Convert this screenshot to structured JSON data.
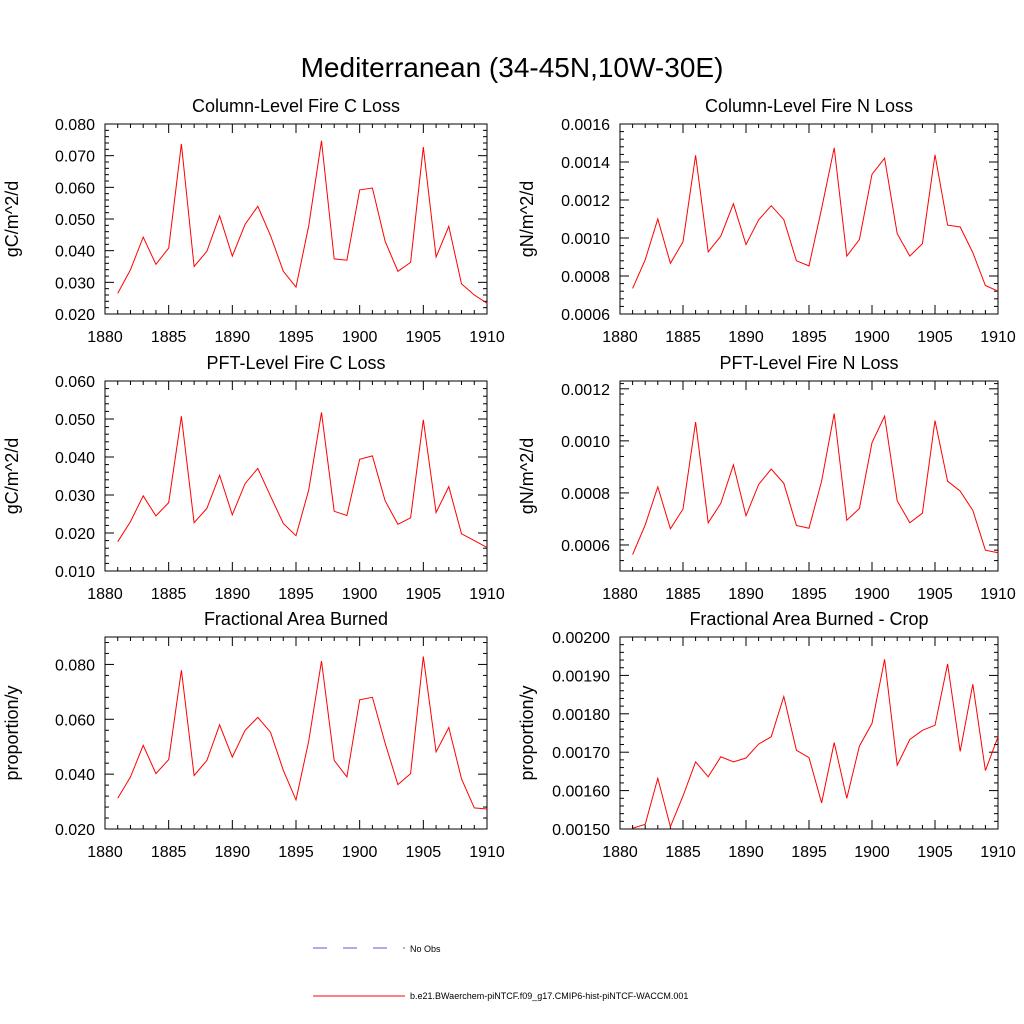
{
  "figure": {
    "title": "Mediterranean (34-45N,10W-30E)",
    "series_color": "#ff0000",
    "obs_color": "#5a5adc",
    "legend": {
      "obs_label": "No Obs",
      "model_label": "b.e21.BWaerchem-piNTCF.f09_g17.CMIP6-hist-piNTCF-WACCM.001"
    }
  },
  "chart_data": [
    {
      "type": "line",
      "title": "Column-Level Fire C Loss",
      "ylabel": "gC/m^2/d",
      "xlim": [
        1880,
        1910
      ],
      "ylim": [
        0.02,
        0.08
      ],
      "xticks": [
        "1880",
        "1885",
        "1890",
        "1895",
        "1900",
        "1905",
        "1910"
      ],
      "yticks": [
        "0.020",
        "0.030",
        "0.040",
        "0.050",
        "0.060",
        "0.070",
        "0.080"
      ],
      "series": [
        {
          "name": "b.e21.BWaerchem-piNTCF.f09_g17.CMIP6-hist-piNTCF-WACCM.001",
          "x": [
            1881,
            1882,
            1883,
            1884,
            1885,
            1886,
            1887,
            1888,
            1889,
            1890,
            1891,
            1892,
            1893,
            1894,
            1895,
            1896,
            1897,
            1898,
            1899,
            1900,
            1901,
            1902,
            1903,
            1904,
            1905,
            1906,
            1907,
            1908,
            1909,
            1910
          ],
          "values": [
            0.0265,
            0.034,
            0.0443,
            0.0357,
            0.0408,
            0.0737,
            0.035,
            0.0398,
            0.051,
            0.0383,
            0.0483,
            0.054,
            0.0448,
            0.0335,
            0.0285,
            0.0478,
            0.0747,
            0.0374,
            0.037,
            0.0592,
            0.0598,
            0.043,
            0.0335,
            0.0363,
            0.0727,
            0.038,
            0.0477,
            0.0295,
            0.026,
            0.0234
          ]
        }
      ]
    },
    {
      "type": "line",
      "title": "Column-Level Fire N Loss",
      "ylabel": "gN/m^2/d",
      "xlim": [
        1880,
        1910
      ],
      "ylim": [
        0.0006,
        0.0016
      ],
      "xticks": [
        "1880",
        "1885",
        "1890",
        "1895",
        "1900",
        "1905",
        "1910"
      ],
      "yticks": [
        "0.0006",
        "0.0008",
        "0.0010",
        "0.0012",
        "0.0014",
        "0.0016"
      ],
      "series": [
        {
          "name": "b.e21.BWaerchem-piNTCF.f09_g17.CMIP6-hist-piNTCF-WACCM.001",
          "x": [
            1881,
            1882,
            1883,
            1884,
            1885,
            1886,
            1887,
            1888,
            1889,
            1890,
            1891,
            1892,
            1893,
            1894,
            1895,
            1896,
            1897,
            1898,
            1899,
            1900,
            1901,
            1902,
            1903,
            1904,
            1905,
            1906,
            1907,
            1908,
            1909,
            1910
          ],
          "values": [
            0.000735,
            0.000885,
            0.0011,
            0.000867,
            0.00098,
            0.001435,
            0.000927,
            0.00101,
            0.00118,
            0.000965,
            0.001095,
            0.00117,
            0.001097,
            0.00088,
            0.000853,
            0.001155,
            0.001475,
            0.000905,
            0.000992,
            0.001335,
            0.00142,
            0.001023,
            0.000905,
            0.00097,
            0.001438,
            0.001068,
            0.001058,
            0.000923,
            0.00075,
            0.00072
          ]
        }
      ]
    },
    {
      "type": "line",
      "title": "PFT-Level Fire C Loss",
      "ylabel": "gC/m^2/d",
      "xlim": [
        1880,
        1910
      ],
      "ylim": [
        0.01,
        0.06
      ],
      "xticks": [
        "1880",
        "1885",
        "1890",
        "1895",
        "1900",
        "1905",
        "1910"
      ],
      "yticks": [
        "0.010",
        "0.020",
        "0.030",
        "0.040",
        "0.050",
        "0.060"
      ],
      "series": [
        {
          "name": "b.e21.BWaerchem-piNTCF.f09_g17.CMIP6-hist-piNTCF-WACCM.001",
          "x": [
            1881,
            1882,
            1883,
            1884,
            1885,
            1886,
            1887,
            1888,
            1889,
            1890,
            1891,
            1892,
            1893,
            1894,
            1895,
            1896,
            1897,
            1898,
            1899,
            1900,
            1901,
            1902,
            1903,
            1904,
            1905,
            1906,
            1907,
            1908,
            1909,
            1910
          ],
          "values": [
            0.0177,
            0.023,
            0.0298,
            0.0245,
            0.028,
            0.0507,
            0.0227,
            0.0265,
            0.0352,
            0.0248,
            0.033,
            0.037,
            0.0297,
            0.0225,
            0.0193,
            0.0313,
            0.0517,
            0.0257,
            0.0246,
            0.0394,
            0.0403,
            0.0285,
            0.0223,
            0.024,
            0.0498,
            0.0254,
            0.0322,
            0.0198,
            0.018,
            0.0162
          ]
        }
      ]
    },
    {
      "type": "line",
      "title": "PFT-Level Fire N Loss",
      "ylabel": "gN/m^2/d",
      "xlim": [
        1880,
        1910
      ],
      "ylim": [
        0.0005,
        0.00123
      ],
      "xticks": [
        "1880",
        "1885",
        "1890",
        "1895",
        "1900",
        "1905",
        "1910"
      ],
      "yticks": [
        "0.0006",
        "0.0008",
        "0.0010",
        "0.0012"
      ],
      "series": [
        {
          "name": "b.e21.BWaerchem-piNTCF.f09_g17.CMIP6-hist-piNTCF-WACCM.001",
          "x": [
            1881,
            1882,
            1883,
            1884,
            1885,
            1886,
            1887,
            1888,
            1889,
            1890,
            1891,
            1892,
            1893,
            1894,
            1895,
            1896,
            1897,
            1898,
            1899,
            1900,
            1901,
            1902,
            1903,
            1904,
            1905,
            1906,
            1907,
            1908,
            1909,
            1910
          ],
          "values": [
            0.000563,
            0.000677,
            0.000823,
            0.000662,
            0.000738,
            0.001072,
            0.000685,
            0.00076,
            0.000908,
            0.000712,
            0.000832,
            0.000892,
            0.000837,
            0.000675,
            0.000664,
            0.000845,
            0.001105,
            0.000695,
            0.00074,
            0.000993,
            0.001095,
            0.00077,
            0.000685,
            0.000722,
            0.001078,
            0.000845,
            0.000807,
            0.000733,
            0.00058,
            0.00057
          ]
        }
      ]
    },
    {
      "type": "line",
      "title": "Fractional Area Burned",
      "ylabel": "proportion/y",
      "xlim": [
        1880,
        1910
      ],
      "ylim": [
        0.02,
        0.09
      ],
      "xticks": [
        "1880",
        "1885",
        "1890",
        "1895",
        "1900",
        "1905",
        "1910"
      ],
      "yticks": [
        "0.020",
        "0.040",
        "0.060",
        "0.080"
      ],
      "series": [
        {
          "name": "b.e21.BWaerchem-piNTCF.f09_g17.CMIP6-hist-piNTCF-WACCM.001",
          "x": [
            1881,
            1882,
            1883,
            1884,
            1885,
            1886,
            1887,
            1888,
            1889,
            1890,
            1891,
            1892,
            1893,
            1894,
            1895,
            1896,
            1897,
            1898,
            1899,
            1900,
            1901,
            1902,
            1903,
            1904,
            1905,
            1906,
            1907,
            1908,
            1909,
            1910
          ],
          "values": [
            0.0312,
            0.039,
            0.0505,
            0.0402,
            0.0453,
            0.0779,
            0.0395,
            0.045,
            0.058,
            0.0462,
            0.056,
            0.0607,
            0.0553,
            0.0414,
            0.0306,
            0.052,
            0.0812,
            0.045,
            0.039,
            0.0671,
            0.068,
            0.0513,
            0.0362,
            0.0402,
            0.0829,
            0.0481,
            0.057,
            0.0383,
            0.0277,
            0.0273
          ]
        }
      ]
    },
    {
      "type": "line",
      "title": "Fractional Area Burned - Crop",
      "ylabel": "proportion/y",
      "xlim": [
        1880,
        1910
      ],
      "ylim": [
        0.0015,
        0.002
      ],
      "xticks": [
        "1880",
        "1885",
        "1890",
        "1895",
        "1900",
        "1905",
        "1910"
      ],
      "yticks": [
        "0.00150",
        "0.00160",
        "0.00170",
        "0.00180",
        "0.00190",
        "0.00200"
      ],
      "series": [
        {
          "name": "b.e21.BWaerchem-piNTCF.f09_g17.CMIP6-hist-piNTCF-WACCM.001",
          "x": [
            1881,
            1882,
            1883,
            1884,
            1885,
            1886,
            1887,
            1888,
            1889,
            1890,
            1891,
            1892,
            1893,
            1894,
            1895,
            1896,
            1897,
            1898,
            1899,
            1900,
            1901,
            1902,
            1903,
            1904,
            1905,
            1906,
            1907,
            1908,
            1909,
            1910
          ],
          "values": [
            0.001502,
            0.001512,
            0.001632,
            0.001506,
            0.001586,
            0.001675,
            0.001636,
            0.001688,
            0.001675,
            0.001685,
            0.001721,
            0.00174,
            0.001845,
            0.001705,
            0.001686,
            0.001568,
            0.001725,
            0.00158,
            0.001716,
            0.001775,
            0.001942,
            0.001666,
            0.001733,
            0.001757,
            0.00177,
            0.00193,
            0.001702,
            0.001877,
            0.001652,
            0.00174
          ]
        }
      ]
    }
  ]
}
